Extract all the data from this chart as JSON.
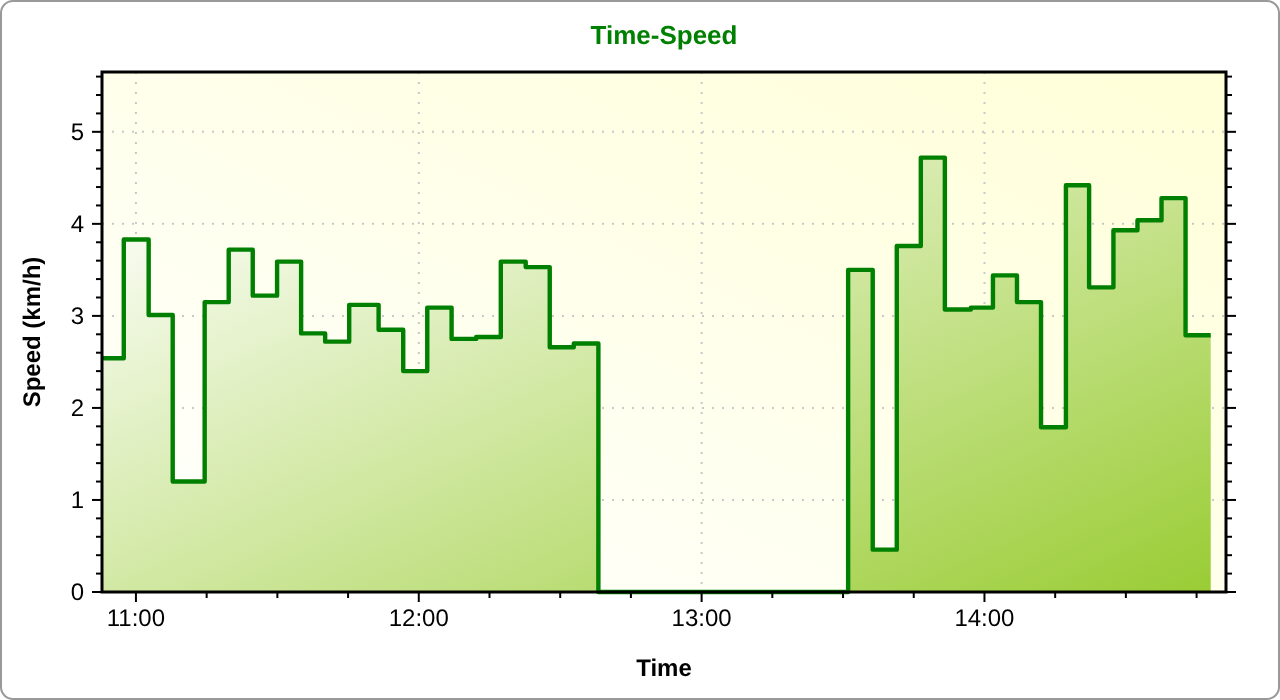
{
  "chart_data": {
    "type": "step",
    "title": "Time-Speed",
    "xlabel": "Time",
    "ylabel": "Speed (km/h)",
    "x": [
      10.88,
      10.957,
      11.045,
      11.13,
      11.243,
      11.328,
      11.413,
      11.499,
      11.584,
      11.669,
      11.754,
      11.858,
      11.945,
      12.03,
      12.116,
      12.203,
      12.29,
      12.378,
      12.463,
      12.548,
      12.635,
      13.518,
      13.605,
      13.69,
      13.775,
      13.86,
      13.952,
      14.03,
      14.115,
      14.2,
      14.288,
      14.37,
      14.456,
      14.541,
      14.626,
      14.711,
      14.8
    ],
    "series": [
      {
        "color": "#008000",
        "values": [
          2.54,
          3.83,
          3.01,
          1.2,
          3.15,
          3.72,
          3.22,
          3.59,
          2.81,
          2.72,
          3.12,
          2.85,
          2.4,
          3.09,
          2.75,
          2.77,
          3.59,
          3.53,
          2.66,
          2.7,
          0,
          3.5,
          0.46,
          3.76,
          4.72,
          3.07,
          3.09,
          3.44,
          3.15,
          1.79,
          4.42,
          3.31,
          3.93,
          4.04,
          4.28,
          2.79,
          2.79
        ]
      }
    ],
    "xlim": [
      10.88,
      14.854
    ],
    "xticks": [
      {
        "value": 11,
        "label": "11:00"
      },
      {
        "value": 11.25,
        "label": null
      },
      {
        "value": 11.5,
        "label": null
      },
      {
        "value": 11.75,
        "label": null
      },
      {
        "value": 12,
        "label": "12:00"
      },
      {
        "value": 12.25,
        "label": null
      },
      {
        "value": 12.5,
        "label": null
      },
      {
        "value": 12.75,
        "label": null
      },
      {
        "value": 13,
        "label": "13:00"
      },
      {
        "value": 13.25,
        "label": null
      },
      {
        "value": 13.5,
        "label": null
      },
      {
        "value": 13.75,
        "label": null
      },
      {
        "value": 14,
        "label": "14:00"
      },
      {
        "value": 14.25,
        "label": null
      },
      {
        "value": 14.5,
        "label": null
      },
      {
        "value": 14.75,
        "label": null
      }
    ],
    "ylim": [
      0,
      5.65
    ],
    "yticks": [
      0,
      {
        "value": 0.2,
        "label": null
      },
      {
        "value": 0.4,
        "label": null
      },
      {
        "value": 0.6,
        "label": null
      },
      {
        "value": 0.8,
        "label": null
      },
      1,
      {
        "value": 1.2,
        "label": null
      },
      {
        "value": 1.4,
        "label": null
      },
      {
        "value": 1.6,
        "label": null
      },
      {
        "value": 1.8,
        "label": null
      },
      2,
      {
        "value": 2.2,
        "label": null
      },
      {
        "value": 2.4,
        "label": null
      },
      {
        "value": 2.6,
        "label": null
      },
      {
        "value": 2.8,
        "label": null
      },
      3,
      {
        "value": 3.2,
        "label": null
      },
      {
        "value": 3.4,
        "label": null
      },
      {
        "value": 3.6,
        "label": null
      },
      {
        "value": 3.8,
        "label": null
      },
      4,
      {
        "value": 4.2,
        "label": null
      },
      {
        "value": 4.4,
        "label": null
      },
      {
        "value": 4.6,
        "label": null
      },
      {
        "value": 4.8,
        "label": null
      },
      5,
      {
        "value": 5.2,
        "label": null
      },
      {
        "value": 5.4,
        "label": null
      },
      {
        "value": 5.6,
        "label": null
      }
    ],
    "grid": true,
    "marker": "none",
    "line_style": "solid"
  }
}
